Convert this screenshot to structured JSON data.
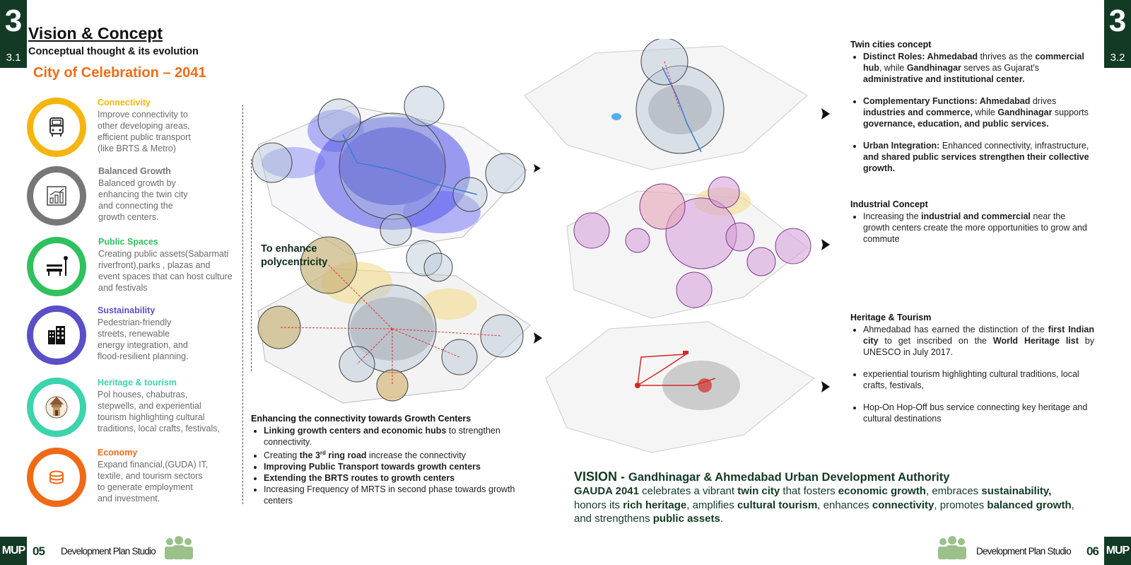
{
  "header": {
    "section_left": "3",
    "sub_left": "3.1",
    "section_right": "3",
    "sub_right": "3.2",
    "title": "Vision & Concept",
    "subtitle": "Conceptual thought & its evolution",
    "celebration": "City of Celebration – 2041"
  },
  "themes": [
    {
      "title": "Connectivity",
      "color": "#f5b50e",
      "icon": "bus-icon",
      "text": [
        "Improve connectivity to",
        "other developing areas,",
        "efficient public transport",
        "(like BRTS & Metro)"
      ]
    },
    {
      "title": "Balanced Growth",
      "color": "#777777",
      "icon": "growth-chart-icon",
      "text": [
        "Balanced growth by",
        "enhancing the twin city",
        "and connecting the",
        "growth centers."
      ]
    },
    {
      "title": "Public Spaces",
      "color": "#2fc15d",
      "icon": "bench-icon",
      "text": [
        "Creating public assets(Sabarmati",
        "riverfront),parks , plazas and",
        "event spaces that can host culture",
        "and festivals"
      ]
    },
    {
      "title": "Sustainability",
      "color": "#5b4fc7",
      "icon": "buildings-icon",
      "text": [
        "Pedestrian-friendly",
        "streets, renewable",
        "energy integration, and",
        "flood-resilient planning."
      ]
    },
    {
      "title": "Heritage & tourism",
      "color": "#3dd3ac",
      "icon": "heritage-monument-icon",
      "text": [
        "Pol houses, chabutras,",
        "stepwells, and experiential",
        "tourism highlighting cultural",
        "traditions, local crafts, festivals,"
      ]
    },
    {
      "title": "Economy",
      "color": "#f06a16",
      "icon": "coins-icon",
      "text": [
        "Expand financial,(GUDA) IT,",
        "textile, and tourism sectors",
        "to generate employment",
        "and investment."
      ]
    }
  ],
  "maps": {
    "polycentric_label_1": "To enhance",
    "polycentric_label_2": "polycentricity"
  },
  "connectivity_list": {
    "title": "Enhancing the connectivity towards Growth Centers",
    "item1_bold": "Linking growth centers and economic hubs",
    "item1_rest": " to strengthen connectivity.",
    "item2_pre": "Creating ",
    "item2_bold_a": "the 3",
    "item2_sup": "rd",
    "item2_bold_b": " ring road",
    "item2_rest": " increase the connectivity",
    "item3_bold": "Improving Public Transport towards growth centers",
    "item4_bold": "Extending the BRTS routes to growth centers",
    "item5": "Increasing Frequency of MRTS in second phase towards growth centers"
  },
  "twin_cities": {
    "title": "Twin cities concept",
    "i1_b1": "Distinct Roles: Ahmedabad",
    "i1_t1": " thrives as the ",
    "i1_b2": "commercial hub",
    "i1_t2": ", while ",
    "i1_b3": "Gandhinagar",
    "i1_t3": " serves as Gujarat's ",
    "i1_b4": "administrative and institutional center.",
    "i2_b1": "Complementary Functions: Ahmedabad",
    "i2_t1": " drives ",
    "i2_b2": "industries and commerce,",
    "i2_t2": " while ",
    "i2_b3": "Gandhinagar",
    "i2_t3": " supports ",
    "i2_b4": "governance, education, and public services.",
    "i3_b1": "Urban Integration:",
    "i3_t1": " Enhanced connectivity, infrastructure, ",
    "i3_b2": "and shared public services strengthen their collective growth."
  },
  "industrial": {
    "title": "Industrial Concept",
    "i1_t1": "Increasing the ",
    "i1_b1": "industrial and commercial",
    "i1_t2": "  near the growth centers create the more opportunities to grow and commute"
  },
  "heritage": {
    "title": "Heritage & Tourism",
    "i1_t1": "Ahmedabad has earned the distinction of the ",
    "i1_b1": "first Indian city",
    "i1_t2": " to get inscribed on the ",
    "i1_b2": "World Heritage list",
    "i1_t3": " by UNESCO in July 2017.",
    "i2": "experiential tourism highlighting cultural traditions, local crafts, festivals,",
    "i3": "Hop-On Hop-Off bus service connecting key heritage and cultural destinations"
  },
  "vision": {
    "head_a": "VISION - ",
    "head_b": "Gandhinagar & Ahmedabad Urban Development Authority",
    "b1": "GAUDA 2041",
    "t1": " celebrates a vibrant ",
    "b2": "twin city",
    "t2": " that fosters ",
    "b3": "economic growth",
    "t3": ", embraces ",
    "b4": "sustainability,",
    "t4": " honors its ",
    "b5": "rich heritage",
    "t5": ", amplifies ",
    "b6": "cultural tourism",
    "t6": ", enhances ",
    "b7": "connectivity",
    "t7": ", promotes ",
    "b8": "balanced growth",
    "t8": ", and strengthens ",
    "b9": "public assets",
    "t9": "."
  },
  "footer": {
    "logo": "MUP",
    "page_left": "05",
    "page_right": "06",
    "studio": "Development Plan Studio"
  }
}
